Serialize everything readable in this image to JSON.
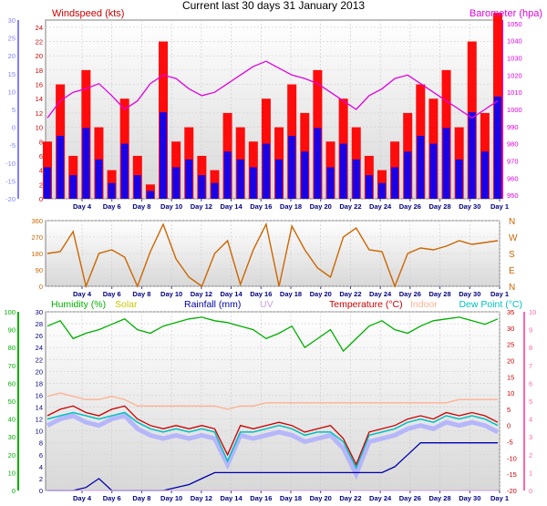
{
  "title": "Current last 30 days 31 January 2013",
  "x_ticks": [
    "Day 4",
    "Day 6",
    "Day 8",
    "Day 10",
    "Day 12",
    "Day 14",
    "Day 16",
    "Day 18",
    "Day 20",
    "Day 22",
    "Day 24",
    "Day 26",
    "Day 28",
    "Day 30",
    "Day 1"
  ],
  "colors": {
    "windspeed": "#ff0000",
    "gust_bar": "#0000ff",
    "temp_band": "#aaaaff",
    "barometer": "#e000e0",
    "direction": "#cc6600",
    "humidity": "#00b000",
    "solar": "#c8c800",
    "rainfall": "#0000aa",
    "uv": "#c8a0e0",
    "temperature": "#cc0000",
    "indoor": "#ffb090",
    "dewpoint": "#00c0c0",
    "left_axis_1": "#8080ff",
    "left_axis_3": "#00b000",
    "right_axis_3": "#ff66aa"
  },
  "chart_data": [
    {
      "type": "area",
      "id": "wind-baro",
      "series": [
        {
          "name": "Windspeed (kts)",
          "axis": "left_inner",
          "values": [
            8,
            16,
            6,
            18,
            10,
            4,
            14,
            6,
            2,
            22,
            8,
            10,
            6,
            4,
            12,
            10,
            8,
            14,
            10,
            16,
            12,
            18,
            8,
            14,
            10,
            6,
            4,
            8,
            12,
            16,
            14,
            18,
            10,
            22,
            12,
            26
          ]
        },
        {
          "name": "Barometer (hpa)",
          "axis": "right",
          "values": [
            995,
            1005,
            1010,
            1012,
            1015,
            1008,
            1000,
            1005,
            1015,
            1020,
            1018,
            1012,
            1008,
            1010,
            1015,
            1020,
            1025,
            1028,
            1024,
            1020,
            1018,
            1015,
            1010,
            1005,
            1000,
            1008,
            1012,
            1018,
            1020,
            1015,
            1010,
            1005,
            1000,
            995,
            1000,
            1005
          ]
        }
      ],
      "axis_left_outer": {
        "ticks": [
          30,
          25,
          20,
          15,
          10,
          5,
          0,
          -5,
          -10,
          -15,
          -20
        ],
        "range": [
          -20,
          30
        ]
      },
      "axis_left_inner": {
        "ticks": [
          24,
          22,
          20,
          18,
          16,
          14,
          12,
          10,
          8,
          6,
          4,
          2,
          0
        ],
        "range": [
          0,
          25
        ]
      },
      "axis_right": {
        "ticks": [
          1050,
          1040,
          1030,
          1020,
          1010,
          1000,
          990,
          980,
          970,
          960,
          950
        ],
        "range": [
          948,
          1052
        ]
      }
    },
    {
      "type": "line",
      "id": "direction",
      "series": [
        {
          "name": "Wind direction",
          "values": [
            180,
            190,
            300,
            0,
            180,
            200,
            160,
            0,
            190,
            340,
            150,
            50,
            0,
            180,
            250,
            10,
            200,
            340,
            0,
            330,
            200,
            100,
            50,
            270,
            320,
            200,
            190,
            0,
            180,
            210,
            200,
            220,
            250,
            230,
            240,
            250
          ]
        }
      ],
      "axis_left": {
        "ticks": [
          360,
          270,
          180,
          90,
          0
        ],
        "range": [
          0,
          360
        ]
      },
      "axis_right": {
        "ticks": [
          "N",
          "W",
          "S",
          "E",
          "N"
        ]
      }
    },
    {
      "type": "line",
      "id": "multi",
      "series": [
        {
          "name": "Humidity (%)",
          "axis": "left_outer",
          "values": [
            92,
            95,
            85,
            88,
            90,
            93,
            96,
            90,
            88,
            92,
            94,
            96,
            97,
            95,
            94,
            92,
            90,
            85,
            88,
            92,
            80,
            85,
            90,
            78,
            85,
            92,
            95,
            90,
            88,
            92,
            95,
            96,
            97,
            95,
            93,
            96
          ]
        },
        {
          "name": "Solar",
          "values": [
            0,
            0,
            0,
            0,
            0,
            0,
            0,
            0,
            0,
            0,
            0,
            0,
            0,
            0,
            0,
            0,
            0,
            0,
            0,
            0,
            0,
            0,
            0,
            0,
            0,
            0,
            0,
            0,
            0,
            0,
            0,
            0,
            0,
            0,
            0,
            0
          ]
        },
        {
          "name": "Rainfall (mm)",
          "axis": "left_inner",
          "values": [
            0,
            0,
            0,
            0.5,
            2,
            0,
            0,
            0,
            0,
            0,
            0.5,
            1,
            2,
            3,
            3,
            3,
            3,
            3,
            3,
            3,
            3,
            3,
            3,
            3,
            3,
            3,
            3,
            4,
            6,
            8,
            8,
            8,
            8,
            8,
            8,
            8
          ]
        },
        {
          "name": "UV",
          "values": [
            0,
            0,
            0,
            0,
            0,
            0,
            0,
            0,
            0,
            0,
            0,
            0,
            0,
            0,
            0,
            0,
            0,
            0,
            0,
            0,
            0,
            0,
            0,
            0,
            0,
            0,
            0,
            0,
            0,
            0,
            0,
            0,
            0,
            0,
            0,
            0
          ]
        },
        {
          "name": "Temperature (°C)",
          "axis": "right_inner",
          "values": [
            3,
            5,
            6,
            4,
            3,
            5,
            6,
            2,
            0,
            -1,
            0,
            -1,
            0,
            -1,
            -9,
            0,
            -1,
            0,
            1,
            0,
            -2,
            -1,
            0,
            -4,
            -12,
            -2,
            -1,
            0,
            2,
            3,
            2,
            4,
            3,
            4,
            3,
            1
          ]
        },
        {
          "name": "Indoor",
          "axis": "right_inner",
          "values": [
            9,
            10,
            9,
            8,
            8,
            9,
            8,
            6,
            6,
            6,
            6,
            6,
            6,
            6,
            5,
            6,
            6,
            7,
            7,
            7,
            7,
            7,
            7,
            7,
            7,
            7,
            7,
            7,
            7,
            7,
            7,
            7,
            8,
            8,
            8,
            8
          ]
        },
        {
          "name": "Dew Point (°C)",
          "axis": "right_inner",
          "values": [
            2,
            3,
            4,
            3,
            2,
            3,
            4,
            1,
            -1,
            -2,
            -1,
            -2,
            -1,
            -2,
            -11,
            -2,
            -2,
            -1,
            0,
            -1,
            -3,
            -2,
            -2,
            -5,
            -13,
            -3,
            -2,
            -1,
            1,
            2,
            1,
            3,
            2,
            3,
            2,
            0
          ]
        }
      ],
      "axis_left_outer": {
        "ticks": [
          100,
          90,
          80,
          70,
          60,
          50,
          40,
          30,
          20,
          10,
          0
        ],
        "range": [
          0,
          100
        ]
      },
      "axis_left_inner": {
        "ticks": [
          30,
          28,
          26,
          24,
          22,
          20,
          18,
          16,
          14,
          12,
          10,
          8,
          6,
          4,
          2,
          0
        ],
        "range": [
          0,
          30
        ]
      },
      "axis_right_inner": {
        "ticks": [
          35,
          30,
          25,
          20,
          15,
          10,
          5,
          0,
          -5,
          -10,
          -15,
          -20
        ],
        "range": [
          -20,
          35
        ]
      },
      "axis_right_outer": {
        "ticks": [
          10,
          9,
          8,
          7,
          6,
          5,
          4,
          3,
          2,
          1,
          0
        ],
        "range": [
          0,
          10
        ]
      }
    }
  ]
}
